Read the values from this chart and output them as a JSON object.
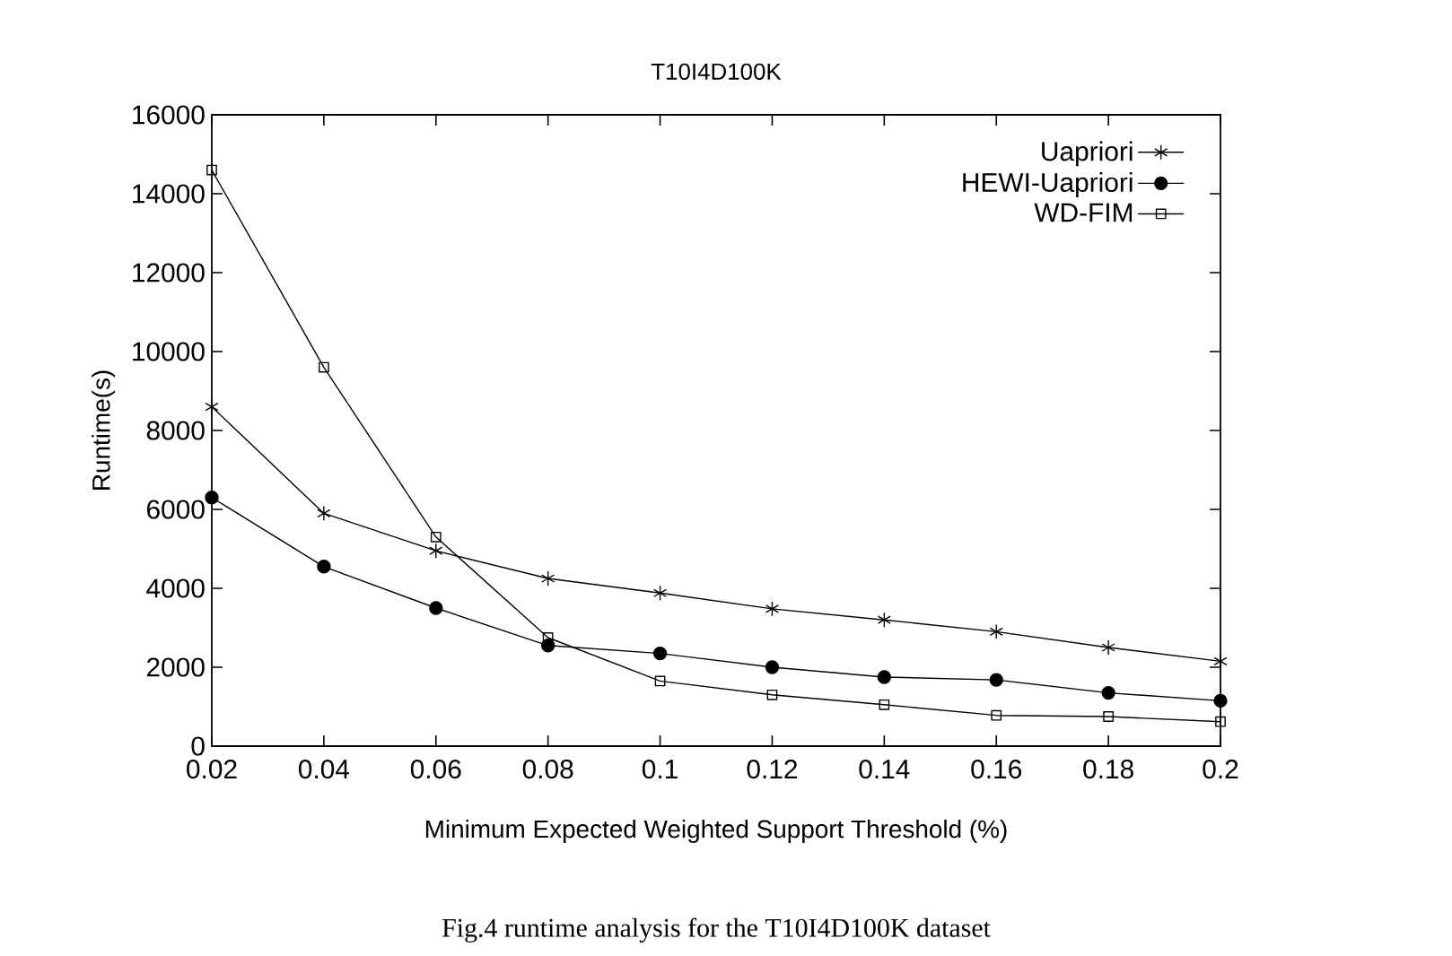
{
  "chart_data": {
    "type": "line",
    "title": "T10I4D100K",
    "xlabel": "Minimum Expected Weighted Support Threshold (%)",
    "ylabel": "Runtime(s)",
    "x": [
      0.02,
      0.04,
      0.06,
      0.08,
      0.1,
      0.12,
      0.14,
      0.16,
      0.18,
      0.2
    ],
    "series": [
      {
        "name": "Uapriori",
        "color": "#000000",
        "marker": "cross",
        "values": [
          8600,
          5900,
          4950,
          4250,
          3880,
          3480,
          3200,
          2900,
          2500,
          2150
        ]
      },
      {
        "name": "HEWI-Uapriori",
        "color": "#000000",
        "marker": "circle",
        "values": [
          6300,
          4550,
          3500,
          2550,
          2350,
          2000,
          1750,
          1680,
          1350,
          1150
        ]
      },
      {
        "name": "WD-FIM",
        "color": "#000000",
        "marker": "square",
        "values": [
          14600,
          9600,
          5300,
          2750,
          1650,
          1300,
          1050,
          780,
          750,
          620
        ]
      }
    ],
    "xlim": [
      0.02,
      0.2
    ],
    "ylim": [
      0,
      16000
    ],
    "xticks": [
      0.02,
      0.04,
      0.06,
      0.08,
      0.1,
      0.12,
      0.14,
      0.16,
      0.18,
      0.2
    ],
    "yticks": [
      0,
      2000,
      4000,
      6000,
      8000,
      10000,
      12000,
      14000,
      16000
    ],
    "legend": "top right",
    "line_style": "solid",
    "annotations": [
      "Fig.4 runtime analysis for the T10I4D100K dataset"
    ]
  }
}
